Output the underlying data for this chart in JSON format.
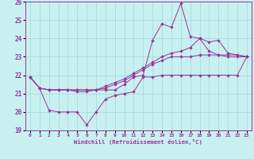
{
  "xlabel": "Windchill (Refroidissement éolien,°C)",
  "background_color": "#c8f0f0",
  "grid_color": "#a0d8d8",
  "line_color": "#993399",
  "xlim": [
    -0.5,
    23.5
  ],
  "ylim": [
    19,
    26
  ],
  "yticks": [
    19,
    20,
    21,
    22,
    23,
    24,
    25,
    26
  ],
  "xticks": [
    0,
    1,
    2,
    3,
    4,
    5,
    6,
    7,
    8,
    9,
    10,
    11,
    12,
    13,
    14,
    15,
    16,
    17,
    18,
    19,
    20,
    21,
    22,
    23
  ],
  "series": [
    {
      "comment": "top volatile line - peaks at 16=25.9, 14=24.8, 15=24.6, ends ~23",
      "x": [
        0,
        1,
        2,
        3,
        4,
        5,
        6,
        7,
        8,
        9,
        10,
        11,
        12,
        13,
        14,
        15,
        16,
        17,
        18,
        19,
        20,
        21,
        22,
        23
      ],
      "y": [
        21.9,
        21.3,
        21.2,
        21.2,
        21.2,
        21.2,
        21.2,
        21.2,
        21.2,
        21.2,
        21.5,
        21.9,
        22.0,
        23.9,
        24.8,
        24.6,
        25.9,
        24.1,
        24.0,
        23.3,
        23.1,
        23.0,
        23.0,
        23.0
      ]
    },
    {
      "x": [
        0,
        1,
        2,
        3,
        4,
        5,
        6,
        7,
        8,
        9,
        10,
        11,
        12,
        13,
        14,
        15,
        16,
        17,
        18,
        19,
        20,
        21,
        22,
        23
      ],
      "y": [
        21.9,
        21.3,
        21.2,
        21.2,
        21.2,
        21.1,
        21.1,
        21.2,
        21.4,
        21.6,
        21.8,
        22.1,
        22.4,
        22.7,
        23.0,
        23.2,
        23.3,
        23.5,
        24.0,
        23.8,
        23.9,
        23.2,
        23.1,
        23.0
      ]
    },
    {
      "x": [
        0,
        1,
        2,
        3,
        4,
        5,
        6,
        7,
        8,
        9,
        10,
        11,
        12,
        13,
        14,
        15,
        16,
        17,
        18,
        19,
        20,
        21,
        22,
        23
      ],
      "y": [
        21.9,
        21.3,
        20.1,
        20.0,
        20.0,
        20.0,
        19.3,
        20.0,
        20.7,
        20.9,
        21.0,
        21.1,
        21.9,
        21.9,
        22.0,
        22.0,
        22.0,
        22.0,
        22.0,
        22.0,
        22.0,
        22.0,
        22.0,
        23.0
      ]
    },
    {
      "x": [
        0,
        1,
        2,
        3,
        4,
        5,
        6,
        7,
        8,
        9,
        10,
        11,
        12,
        13,
        14,
        15,
        16,
        17,
        18,
        19,
        20,
        21,
        22,
        23
      ],
      "y": [
        21.9,
        21.3,
        21.2,
        21.2,
        21.2,
        21.2,
        21.2,
        21.2,
        21.3,
        21.5,
        21.7,
        22.0,
        22.3,
        22.6,
        22.8,
        23.0,
        23.0,
        23.0,
        23.1,
        23.1,
        23.1,
        23.1,
        23.1,
        23.0
      ]
    }
  ]
}
